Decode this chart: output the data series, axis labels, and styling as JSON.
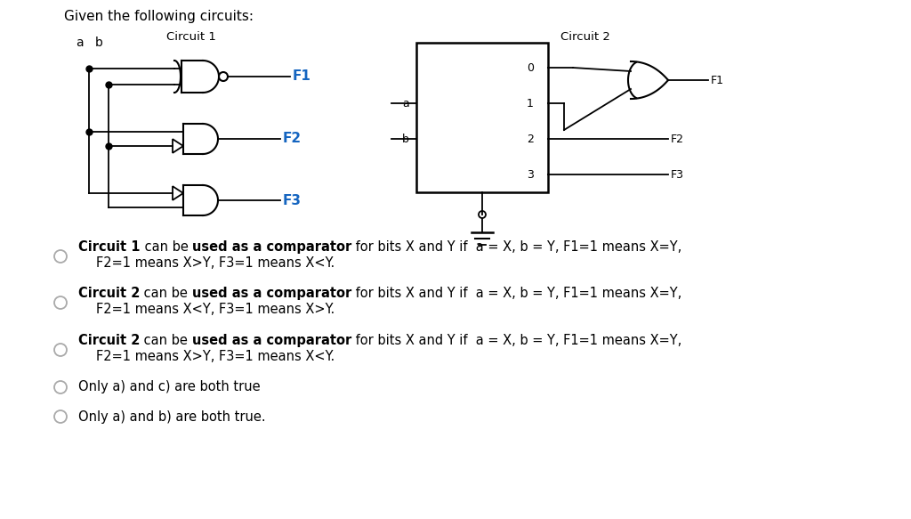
{
  "bg": "#ffffff",
  "title": "Given the following circuits:",
  "c1_label": "Circuit 1",
  "c2_label": "Circuit 2",
  "blue": "#1565c0",
  "black": "#1a1a1a",
  "gray": "#999999",
  "option_lines": [
    [
      "Circuit 1",
      " can be ",
      "used as a comparator",
      " for bits X and Y if  a = X, b = Y, F1=1 means X=Y,",
      "F2=1 means X>Y, F3=1 means X<Y."
    ],
    [
      "Circuit 2",
      " can be ",
      "used as a comparator",
      " for bits X and Y if  a = X, b = Y, F1=1 means X=Y,",
      "F2=1 means X<Y, F3=1 means X>Y."
    ],
    [
      "Circuit 2",
      " can be ",
      "used as a comparator",
      " for bits X and Y if  a = X, b = Y, F1=1 means X=Y,",
      "F2=1 means X>Y, F3=1 means X<Y."
    ],
    [
      "Only a) and c) are both true"
    ],
    [
      "Only a) and b) are both true."
    ]
  ]
}
